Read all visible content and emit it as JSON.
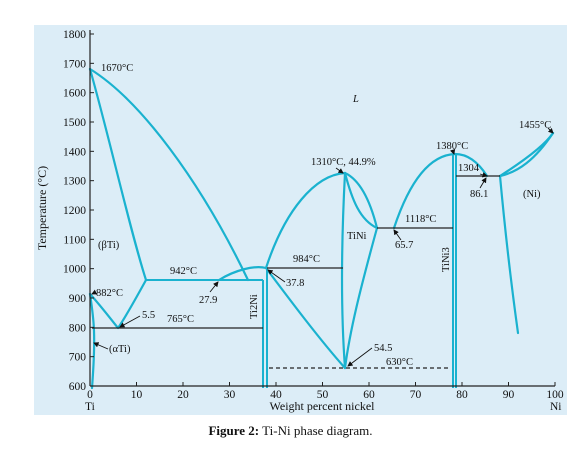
{
  "colors": {
    "panel": "#dcedf7",
    "curve": "#1ab2cf",
    "axis": "#222222",
    "text": "#111111"
  },
  "axes": {
    "x_title": "Weight percent nickel",
    "y_title": "Temperature (°C)",
    "x_ticks": [
      "0",
      "10",
      "20",
      "30",
      "40",
      "50",
      "60",
      "70",
      "80",
      "90",
      "100"
    ],
    "y_ticks": [
      "600",
      "700",
      "800",
      "900",
      "1000",
      "1100",
      "1200",
      "1300",
      "1400",
      "1500",
      "1600",
      "1700",
      "1800"
    ],
    "x_left_element": "Ti",
    "x_right_element": "Ni",
    "x_range": [
      0,
      100
    ],
    "y_range": [
      600,
      1800
    ]
  },
  "labels": {
    "ti_melt": "1670°C",
    "liquid": "L",
    "beta_ti": "(βTi)",
    "alpha_ti": "(αTi)",
    "ni_phase": "(Ni)",
    "ni_melt": "1455°C",
    "t_882": "882°C",
    "c_5_5": "5.5",
    "t_765": "765°C",
    "t_942": "942°C",
    "c_27_9": "27.9",
    "ti2ni": "Ti2Ni",
    "t_984": "984°C",
    "c_37_8": "37.8",
    "tini_max": "1310°C, 44.9%",
    "tini": "TiNi",
    "t_1118": "1118°C",
    "c_65_7": "65.7",
    "tini3_max": "1380°C",
    "tini3": "TiNi3",
    "c_1304": "1304",
    "c_86_1": "86.1",
    "c_54_5": "54.5",
    "t_630": "630°C"
  },
  "caption": {
    "label": "Figure 2:",
    "text": " Ti-Ni phase diagram."
  }
}
